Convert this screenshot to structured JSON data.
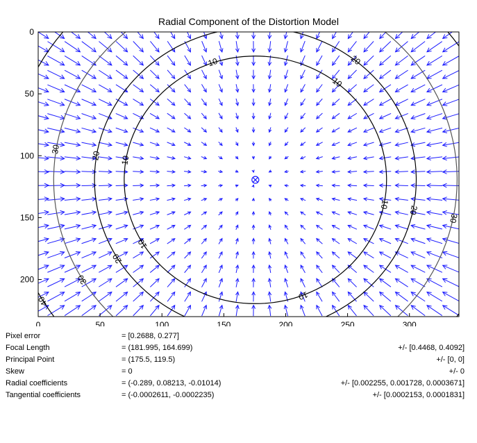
{
  "chart_data": {
    "type": "contour-quiver",
    "title": "Radial Component of the Distortion Model",
    "xlabel": "",
    "ylabel": "",
    "xlim": [
      0,
      340
    ],
    "ylim": [
      0,
      230
    ],
    "y_reversed": true,
    "x_ticks": [
      0,
      50,
      100,
      150,
      200,
      250,
      300
    ],
    "y_ticks": [
      0,
      50,
      100,
      150,
      200
    ],
    "principal_point": [
      175.5,
      119.5
    ],
    "contours": [
      {
        "level": 10,
        "label": "10",
        "color": "#000000"
      },
      {
        "level": 20,
        "label": "20",
        "color": "#000000"
      },
      {
        "level": 30,
        "label": "30",
        "color": "#555555"
      },
      {
        "level": 40,
        "label": "40",
        "color": "#000000"
      }
    ],
    "vector_color": "#1a1aff",
    "legend": "none"
  },
  "calibration": {
    "rows": [
      {
        "label": "Pixel error",
        "value": "= [0.2688, 0.277]",
        "error": ""
      },
      {
        "label": "Focal Length",
        "value": "= (181.995, 164.699)",
        "error": "+/- [0.4468, 0.4092]"
      },
      {
        "label": "Principal Point",
        "value": "= (175.5, 119.5)",
        "error": "+/- [0, 0]"
      },
      {
        "label": "Skew",
        "value": "= 0",
        "error": "+/- 0"
      },
      {
        "label": "Radial coefficients",
        "value": "= (-0.289, 0.08213, -0.01014)",
        "error": "+/- [0.002255, 0.001728, 0.0003671]"
      },
      {
        "label": "Tangential coefficients",
        "value": "= (-0.0002611, -0.0002235)",
        "error": "+/- [0.0002153, 0.0001831]"
      }
    ]
  }
}
